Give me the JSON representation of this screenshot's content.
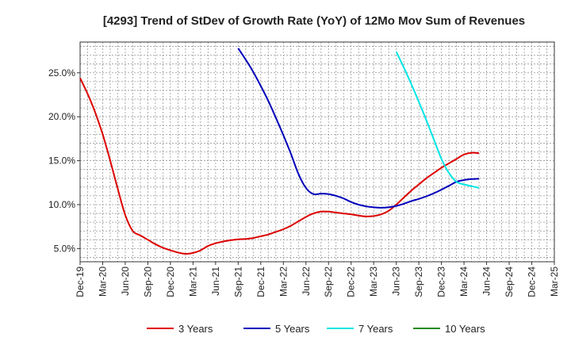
{
  "chart_data": {
    "type": "line",
    "title": "[4293]  Trend of StDev of Growth Rate (YoY) of 12Mo Mov Sum of Revenues",
    "xlabel": "",
    "ylabel": "",
    "ylim": [
      3.5,
      28.5
    ],
    "grid": true,
    "legend_position": "bottom",
    "x_ticks": [
      "Dec-19",
      "Mar-20",
      "Jun-20",
      "Sep-20",
      "Dec-20",
      "Mar-21",
      "Jun-21",
      "Sep-21",
      "Dec-21",
      "Mar-22",
      "Jun-22",
      "Sep-22",
      "Dec-22",
      "Mar-23",
      "Jun-23",
      "Sep-23",
      "Dec-23",
      "Mar-24",
      "Jun-24",
      "Sep-24",
      "Dec-24",
      "Mar-25"
    ],
    "y_ticks": [
      5,
      10,
      15,
      20,
      25
    ],
    "y_tick_labels": [
      "5.0%",
      "10.0%",
      "15.0%",
      "20.0%",
      "25.0%"
    ],
    "series": [
      {
        "name": "3 Years",
        "color": "#dd0000",
        "points": [
          [
            0,
            24.4
          ],
          [
            1,
            22.6
          ],
          [
            2,
            20.5
          ],
          [
            3,
            18.0
          ],
          [
            4,
            15.0
          ],
          [
            5,
            11.8
          ],
          [
            6,
            8.8
          ],
          [
            7,
            7.0
          ],
          [
            8,
            6.5
          ],
          [
            9,
            6.0
          ],
          [
            10,
            5.5
          ],
          [
            11,
            5.1
          ],
          [
            12,
            4.8
          ],
          [
            13,
            4.55
          ],
          [
            14,
            4.4
          ],
          [
            15,
            4.5
          ],
          [
            16,
            4.8
          ],
          [
            17,
            5.3
          ],
          [
            18,
            5.6
          ],
          [
            19,
            5.8
          ],
          [
            20,
            5.95
          ],
          [
            21,
            6.05
          ],
          [
            22,
            6.1
          ],
          [
            23,
            6.2
          ],
          [
            24,
            6.4
          ],
          [
            25,
            6.6
          ],
          [
            26,
            6.9
          ],
          [
            27,
            7.2
          ],
          [
            28,
            7.6
          ],
          [
            29,
            8.1
          ],
          [
            30,
            8.6
          ],
          [
            31,
            9.0
          ],
          [
            32,
            9.2
          ],
          [
            33,
            9.2
          ],
          [
            34,
            9.1
          ],
          [
            35,
            9.0
          ],
          [
            36,
            8.9
          ],
          [
            37,
            8.75
          ],
          [
            38,
            8.65
          ],
          [
            39,
            8.7
          ],
          [
            40,
            8.9
          ],
          [
            41,
            9.3
          ],
          [
            42,
            10.0
          ],
          [
            43,
            10.8
          ],
          [
            44,
            11.6
          ],
          [
            45,
            12.3
          ],
          [
            46,
            13.0
          ],
          [
            47,
            13.6
          ],
          [
            48,
            14.2
          ],
          [
            49,
            14.7
          ],
          [
            50,
            15.2
          ],
          [
            51,
            15.7
          ],
          [
            52,
            15.9
          ],
          [
            53,
            15.85
          ]
        ]
      },
      {
        "name": "5 Years",
        "color": "#0000bb",
        "points": [
          [
            21,
            27.8
          ],
          [
            22,
            26.5
          ],
          [
            23,
            25.1
          ],
          [
            24,
            23.5
          ],
          [
            25,
            21.8
          ],
          [
            26,
            19.9
          ],
          [
            27,
            17.9
          ],
          [
            28,
            15.8
          ],
          [
            29,
            13.5
          ],
          [
            30,
            11.9
          ],
          [
            31,
            11.2
          ],
          [
            32,
            11.25
          ],
          [
            33,
            11.2
          ],
          [
            34,
            11.0
          ],
          [
            35,
            10.7
          ],
          [
            36,
            10.3
          ],
          [
            37,
            10.0
          ],
          [
            38,
            9.8
          ],
          [
            39,
            9.7
          ],
          [
            40,
            9.65
          ],
          [
            41,
            9.7
          ],
          [
            42,
            9.85
          ],
          [
            43,
            10.1
          ],
          [
            44,
            10.4
          ],
          [
            45,
            10.65
          ],
          [
            46,
            10.95
          ],
          [
            47,
            11.3
          ],
          [
            48,
            11.7
          ],
          [
            49,
            12.15
          ],
          [
            50,
            12.6
          ],
          [
            51,
            12.8
          ],
          [
            52,
            12.9
          ],
          [
            53,
            12.95
          ]
        ]
      },
      {
        "name": "7 Years",
        "color": "#00e5e5",
        "points": [
          [
            42,
            27.4
          ],
          [
            43,
            25.6
          ],
          [
            44,
            23.7
          ],
          [
            45,
            21.7
          ],
          [
            46,
            19.6
          ],
          [
            47,
            17.4
          ],
          [
            48,
            15.2
          ],
          [
            49,
            13.6
          ],
          [
            50,
            12.6
          ],
          [
            51,
            12.3
          ],
          [
            52,
            12.1
          ],
          [
            53,
            11.9
          ]
        ]
      },
      {
        "name": "10 Years",
        "color": "#228b22",
        "points": []
      }
    ]
  }
}
